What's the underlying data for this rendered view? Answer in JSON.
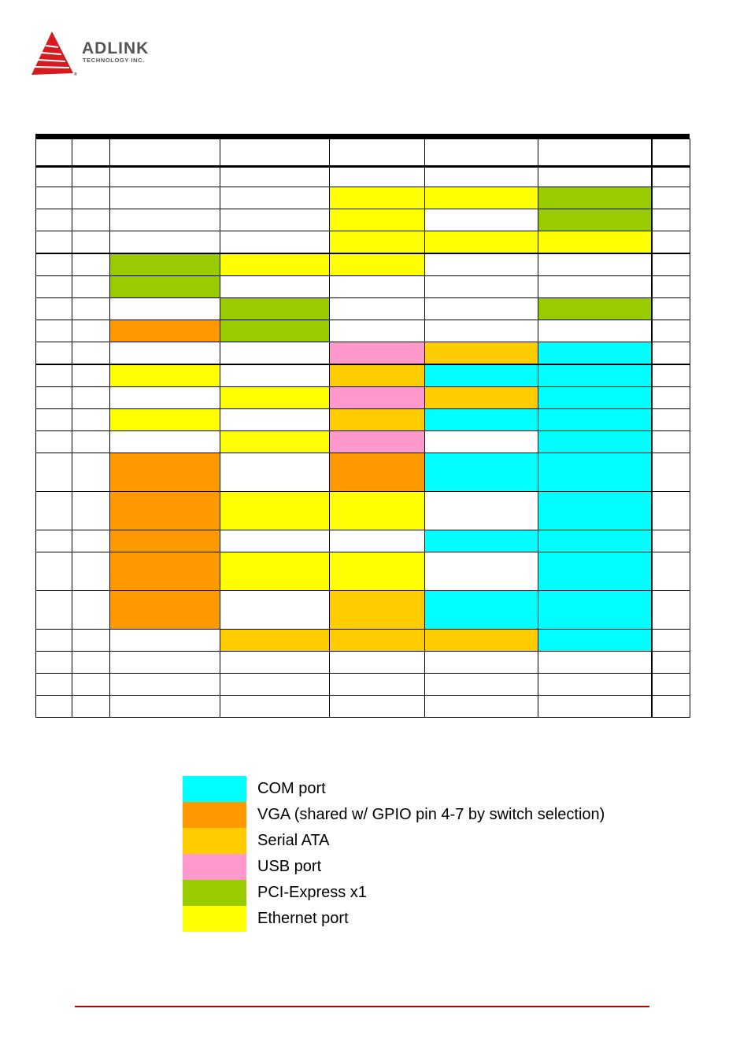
{
  "header": {
    "logo_name": "ADLINK",
    "logo_sub": "TECHNOLOGY INC.",
    "brand_color": "#d71920"
  },
  "colors": {
    "com": "#00ffff",
    "vga": "#ff9900",
    "sata": "#ffcc00",
    "usb": "#ff99cc",
    "pcie": "#99cc00",
    "eth": "#ffff00"
  },
  "legend": [
    {
      "key": "com",
      "label": "COM port"
    },
    {
      "key": "vga",
      "label": "VGA (shared w/ GPIO pin 4-7 by switch selection)"
    },
    {
      "key": "sata",
      "label": "Serial ATA"
    },
    {
      "key": "usb",
      "label": "USB port"
    },
    {
      "key": "pcie",
      "label": "PCI-Express x1"
    },
    {
      "key": "eth",
      "label": "Ethernet port"
    }
  ]
}
